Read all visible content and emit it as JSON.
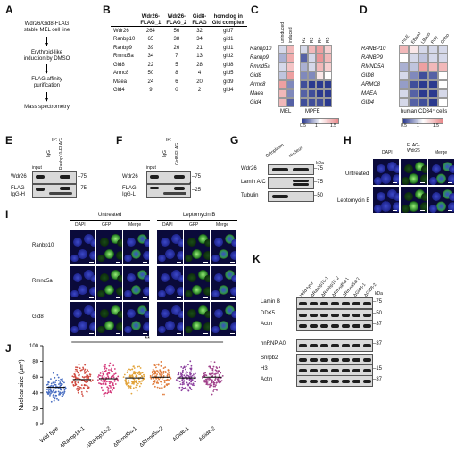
{
  "panels": {
    "A": "A",
    "B": "B",
    "C": "C",
    "D": "D",
    "E": "E",
    "F": "F",
    "G": "G",
    "H": "H",
    "I": "I",
    "J": "J",
    "K": "K"
  },
  "panelA": {
    "steps": [
      "Wdr26/Gid8-FLAG\nstable MEL cell line",
      "Erythroid-like\ninduction by DMSO",
      "FLAG affinity\npurification",
      "Mass spectrometry"
    ]
  },
  "panelB": {
    "headers": [
      "",
      "Wdr26-\nFLAG_1",
      "Wdr26-\nFLAG_2",
      "Gid8-\nFLAG",
      "homolog in\nGid complex"
    ],
    "rows": [
      [
        "Wdr26",
        "264",
        "56",
        "32",
        "gid7"
      ],
      [
        "Ranbp10",
        "65",
        "38",
        "34",
        "gid1"
      ],
      [
        "Ranbp9",
        "39",
        "26",
        "21",
        "gid1"
      ],
      [
        "Rmnd5a",
        "34",
        "7",
        "13",
        "gid2"
      ],
      [
        "Gid8",
        "22",
        "5",
        "28",
        "gid8"
      ],
      [
        "Armc8",
        "50",
        "8",
        "4",
        "gid5"
      ],
      [
        "Maea",
        "24",
        "6",
        "20",
        "gid9"
      ],
      [
        "Gid4",
        "9",
        "0",
        "2",
        "gid4"
      ]
    ]
  },
  "panelC": {
    "genes": [
      "Ranbp10",
      "Ranbp9",
      "Rmnd5a",
      "Gid8",
      "Armc8",
      "Maea",
      "Gid4"
    ],
    "col_labels": [
      "uninduced",
      "induced",
      "R2",
      "R3",
      "R4",
      "R5"
    ],
    "group_labels": [
      "MEL",
      "MPFE"
    ],
    "scale": [
      "0.5",
      "1",
      "1.5"
    ],
    "colors": {
      "low": "#2b3a8f",
      "mid": "#ffffff",
      "high": "#e8888a"
    }
  },
  "panelD": {
    "genes": [
      "RANBP10",
      "RANBP9",
      "RMND5A",
      "GID8",
      "ARMC8",
      "MAEA",
      "GID4"
    ],
    "col_labels": [
      "ProE",
      "EBaso",
      "LBaso",
      "Poly",
      "Ortho"
    ],
    "group_label": "human CD34⁺ cells",
    "scale": [
      "0.5",
      "1",
      "1.5"
    ]
  },
  "panelE": {
    "top_label": "IP:",
    "lanes": [
      "input",
      "IgG",
      "Ranbp10-FLAG"
    ],
    "rows": [
      "Wdr26",
      "FLAG\nIgG-H"
    ],
    "markers": [
      "75",
      "75"
    ]
  },
  "panelF": {
    "top_label": "IP:",
    "lanes": [
      "input",
      "IgG",
      "Gid8-FLAG"
    ],
    "rows": [
      "Wdr26",
      "FLAG\nIgG-L"
    ],
    "markers": [
      "75",
      "25"
    ],
    "star": "*"
  },
  "panelG": {
    "lanes": [
      "Cytoplasm",
      "Nucleus"
    ],
    "rows": [
      "Wdr26",
      "Lamin A/C",
      "Tubulin"
    ],
    "unit": "kDa",
    "markers": [
      "75",
      "75",
      "50"
    ]
  },
  "panelH": {
    "cols": [
      "DAPI",
      "FLAG-\nWdr26",
      "Merge"
    ],
    "rows": [
      "Untreated",
      "Leptomycin B"
    ]
  },
  "panelI": {
    "group_labels": [
      "Untreated",
      "Leptomycin B"
    ],
    "cols": [
      "DAPI",
      "GFP",
      "Merge",
      "DAPI",
      "GFP",
      "Merge"
    ],
    "rows": [
      "Ranbp10",
      "Rmnd5a",
      "Gid8"
    ]
  },
  "panelK": {
    "lanes": [
      "Wild type",
      "ΔRanbp10-1",
      "ΔRanbp10-2",
      "ΔRmnd5a-1",
      "ΔRmnd5a-2",
      "ΔGid8-1",
      "ΔGid8-2"
    ],
    "rows": [
      "Lamin B",
      "DDX5",
      "Actin",
      "hnRNP A0",
      "Snrpb2",
      "H3",
      "Actin"
    ],
    "unit": "kDa",
    "markers": [
      "75",
      "50",
      "37",
      "37",
      "15",
      "37"
    ]
  },
  "chart_data": {
    "type": "scatter",
    "ylabel": "Nuclear size (μm²)",
    "categories": [
      "Wild type",
      "ΔRanbp10-1",
      "ΔRanbp10-2",
      "ΔRmnd5a-1",
      "ΔRmnd5a-2",
      "ΔGid8-1",
      "ΔGid8-2"
    ],
    "yticks": [
      0,
      20,
      40,
      60,
      80,
      100
    ],
    "ylim": [
      0,
      100
    ],
    "medians": [
      47,
      57,
      58,
      59,
      60,
      59,
      60
    ],
    "spread": [
      [
        25,
        75
      ],
      [
        30,
        88
      ],
      [
        33,
        90
      ],
      [
        38,
        88
      ],
      [
        38,
        95
      ],
      [
        35,
        88
      ],
      [
        38,
        92
      ]
    ],
    "significance": "**",
    "colors": [
      "#4a6fc2",
      "#d04a3f",
      "#d4387a",
      "#e2a33a",
      "#e07a3a",
      "#8b3f9e",
      "#a0408a"
    ]
  }
}
